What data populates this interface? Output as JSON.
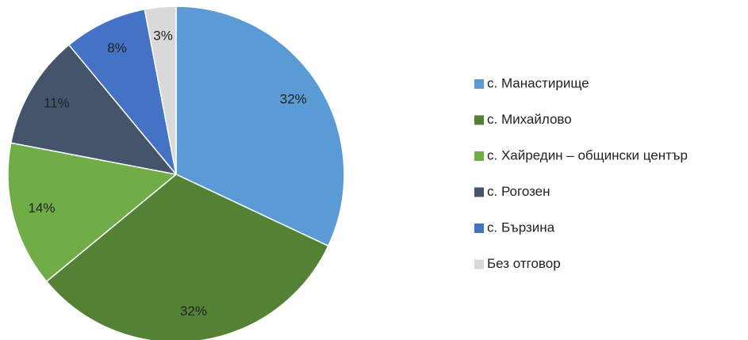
{
  "chart_data": {
    "type": "pie",
    "categories": [
      "с. Манастирище",
      "с. Михайлово",
      "с. Хайредин – общински център",
      "с. Рогозен",
      "с. Бързина",
      "Без отговор"
    ],
    "values": [
      32,
      32,
      14,
      11,
      8,
      3
    ],
    "value_labels": [
      "32%",
      "32%",
      "14%",
      "11%",
      "8%",
      "3%"
    ],
    "colors": [
      "#5b9bd5",
      "#548235",
      "#70ad47",
      "#44546a",
      "#4472c4",
      "#d9d9d9"
    ],
    "legend": "right"
  }
}
